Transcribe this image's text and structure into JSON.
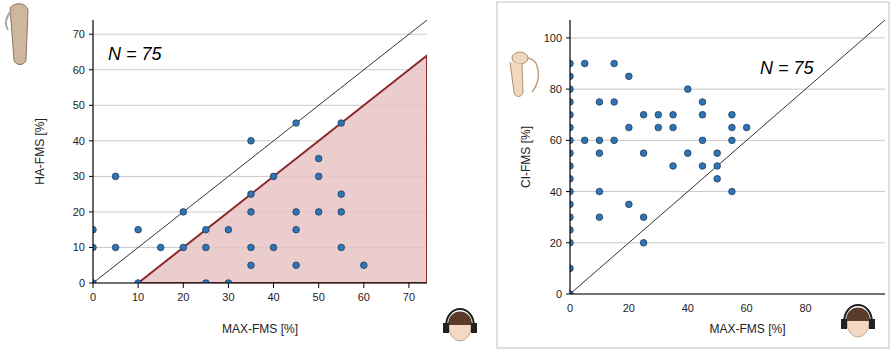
{
  "chart_data": [
    {
      "type": "scatter",
      "annotation": "N = 75",
      "x_label": "MAX-FMS [%]",
      "y_label": "HA-FMS [%]",
      "xlim": [
        0,
        74
      ],
      "ylim": [
        0,
        74
      ],
      "xticks": [
        0,
        10,
        20,
        30,
        40,
        50,
        60,
        70
      ],
      "yticks": [
        0,
        10,
        20,
        30,
        40,
        50,
        60,
        70
      ],
      "grid": true,
      "color": "#2e75b6",
      "marker": "circle",
      "x": [
        0,
        0,
        0,
        5,
        5,
        10,
        10,
        15,
        20,
        20,
        25,
        25,
        25,
        30,
        30,
        35,
        35,
        35,
        35,
        35,
        40,
        40,
        45,
        45,
        45,
        45,
        50,
        50,
        50,
        55,
        55,
        55,
        55,
        60
      ],
      "values": [
        0,
        10,
        15,
        10,
        30,
        0,
        15,
        10,
        10,
        20,
        10,
        15,
        0,
        15,
        0,
        40,
        25,
        20,
        10,
        5,
        30,
        10,
        45,
        20,
        15,
        5,
        20,
        30,
        35,
        45,
        25,
        20,
        10,
        5
      ],
      "shaded_region": {
        "x": [
          10,
          74,
          74
        ],
        "y": [
          0,
          64,
          0
        ],
        "color": "#e9c4c4"
      }
    },
    {
      "type": "scatter",
      "annotation": "N = 75",
      "x_label": "MAX-FMS [%]",
      "y_label": "CI-FMS [%]",
      "xlim": [
        0,
        107
      ],
      "ylim": [
        0,
        107
      ],
      "xticks": [
        0,
        20,
        40,
        60,
        80
      ],
      "yticks": [
        0,
        20,
        40,
        60,
        80,
        100
      ],
      "grid": true,
      "color": "#2e75b6",
      "marker": "circle",
      "x": [
        0,
        0,
        0,
        0,
        0,
        0,
        0,
        0,
        0,
        0,
        0,
        0,
        0,
        0,
        0,
        0,
        0,
        5,
        5,
        10,
        10,
        10,
        10,
        10,
        15,
        15,
        15,
        20,
        20,
        20,
        25,
        25,
        25,
        25,
        30,
        30,
        35,
        35,
        35,
        40,
        40,
        45,
        45,
        45,
        45,
        50,
        50,
        50,
        55,
        55,
        55,
        55,
        60
      ],
      "values": [
        0,
        10,
        20,
        25,
        30,
        35,
        40,
        45,
        50,
        55,
        60,
        65,
        70,
        75,
        80,
        85,
        90,
        90,
        60,
        75,
        60,
        55,
        40,
        30,
        90,
        75,
        60,
        85,
        65,
        35,
        70,
        55,
        30,
        20,
        70,
        65,
        70,
        65,
        50,
        80,
        55,
        75,
        70,
        60,
        50,
        55,
        50,
        45,
        70,
        65,
        60,
        40,
        65
      ]
    }
  ]
}
